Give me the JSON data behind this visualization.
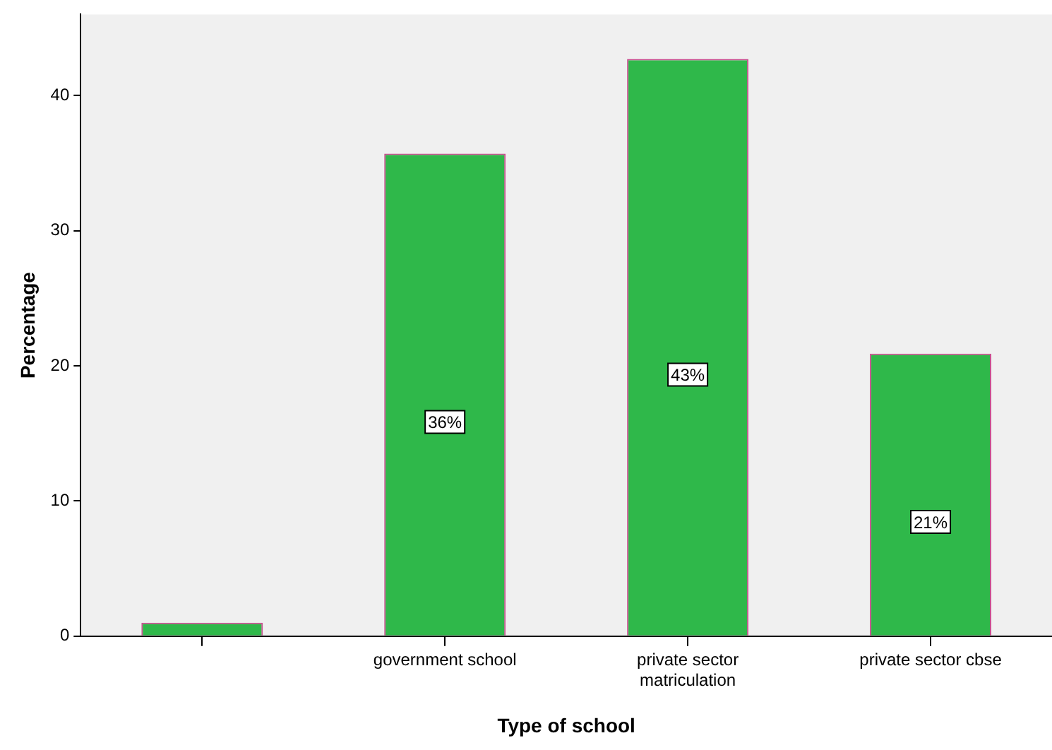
{
  "chart_data": {
    "type": "bar",
    "xlabel": "Type of school",
    "ylabel": "Percentage",
    "categories": [
      null,
      "government school",
      "private sector matriculation",
      "private sector cbse"
    ],
    "values": [
      1.0,
      35.7,
      42.7,
      20.9
    ],
    "color": "#2fb84a",
    "value_labels": [
      null,
      "36%",
      "43%",
      "21%"
    ],
    "ylim": [
      0,
      46
    ],
    "yticks": [
      0,
      10,
      20,
      30,
      40
    ],
    "grid": false,
    "legend": false
  }
}
